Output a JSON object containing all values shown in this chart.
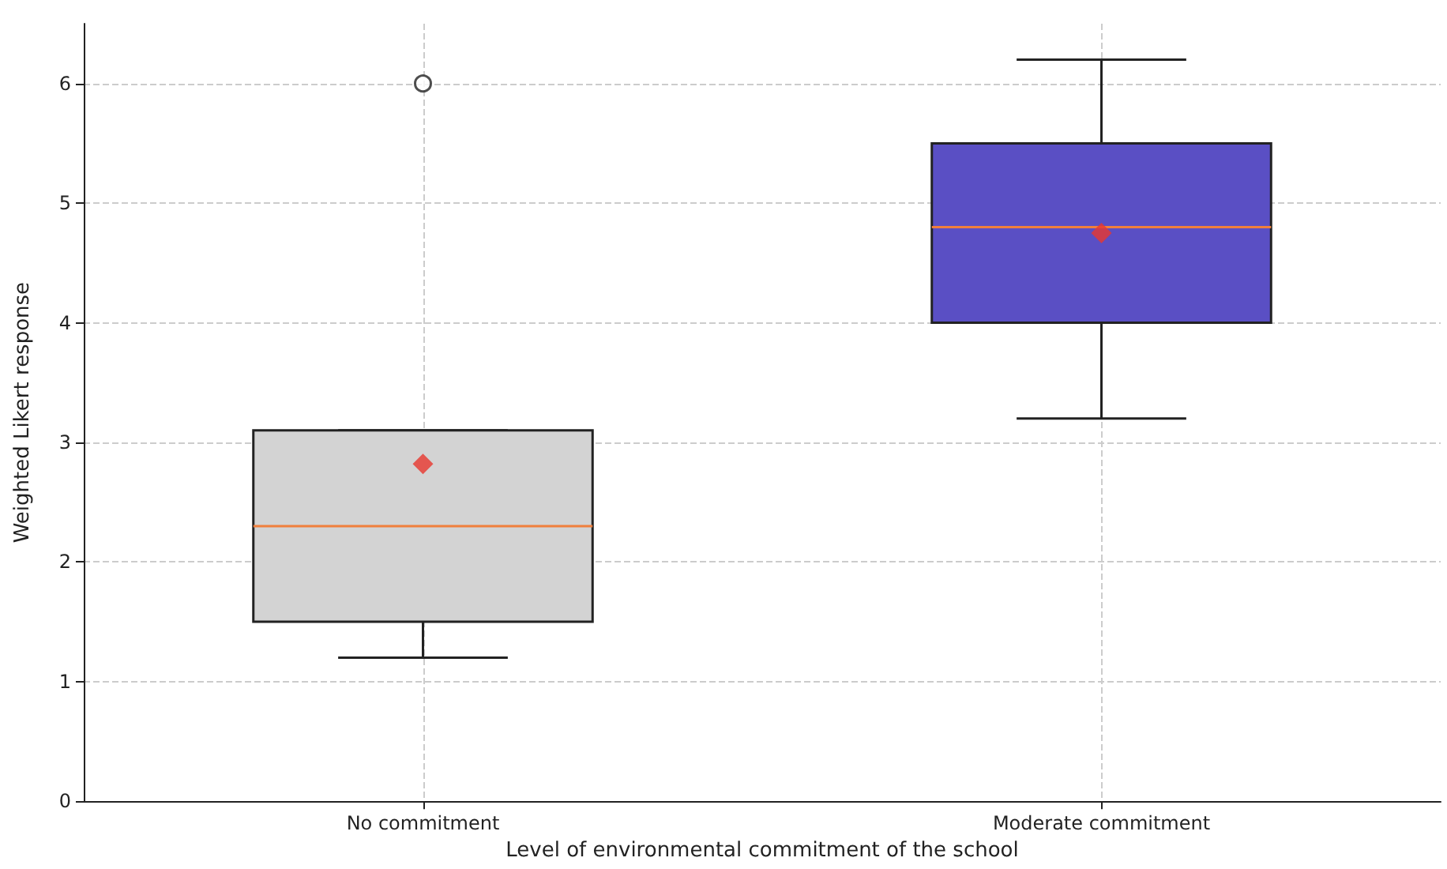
{
  "chart_data": {
    "type": "box",
    "xlabel": "Level of environmental commitment of the school",
    "ylabel": "Weighted Likert response",
    "categories": [
      "No commitment",
      "Moderate commitment"
    ],
    "colors": [
      "#d3d3d3",
      "#5a4fc4"
    ],
    "boxes": [
      {
        "low": 1.2,
        "q1": 1.5,
        "median": 2.3,
        "q3": 3.1,
        "high": 3.1,
        "mean": 2.82,
        "outliers": [
          6
        ]
      },
      {
        "low": 3.2,
        "q1": 4.0,
        "median": 4.8,
        "q3": 5.5,
        "high": 6.2,
        "mean": 4.75
      }
    ],
    "ylim": [
      0,
      6.5
    ],
    "yticks": [
      0,
      1,
      2,
      3,
      4,
      5,
      6
    ],
    "grid": true
  }
}
